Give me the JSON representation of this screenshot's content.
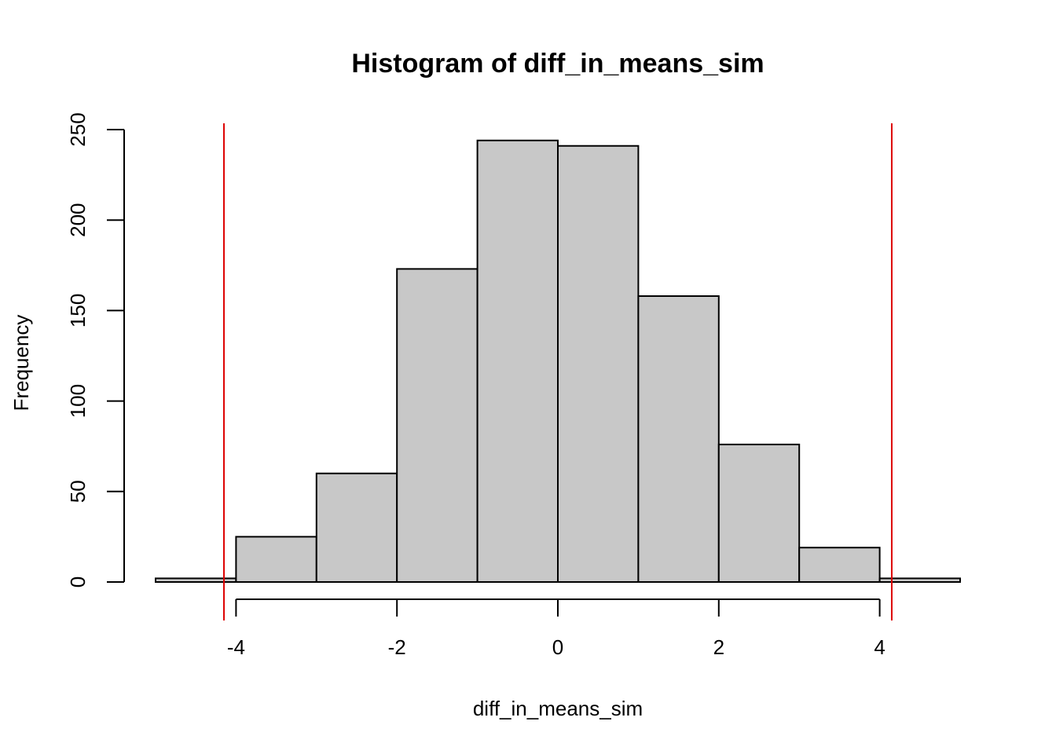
{
  "chart_data": {
    "type": "bar",
    "title": "Histogram of diff_in_means_sim",
    "xlabel": "diff_in_means_sim",
    "ylabel": "Frequency",
    "bins": [
      {
        "x0": -5,
        "x1": -4,
        "count": 2
      },
      {
        "x0": -4,
        "x1": -3,
        "count": 25
      },
      {
        "x0": -3,
        "x1": -2,
        "count": 60
      },
      {
        "x0": -2,
        "x1": -1,
        "count": 173
      },
      {
        "x0": -1,
        "x1": 0,
        "count": 244
      },
      {
        "x0": 0,
        "x1": 1,
        "count": 241
      },
      {
        "x0": 1,
        "x1": 2,
        "count": 158
      },
      {
        "x0": 2,
        "x1": 3,
        "count": 76
      },
      {
        "x0": 3,
        "x1": 4,
        "count": 19
      },
      {
        "x0": 4,
        "x1": 5,
        "count": 2
      }
    ],
    "xticks": [
      -4,
      -2,
      0,
      2,
      4
    ],
    "yticks": [
      0,
      50,
      100,
      150,
      200,
      250
    ],
    "xlim": [
      -5,
      5
    ],
    "ylim": [
      0,
      250
    ],
    "vlines": [
      {
        "x": -4.15,
        "color": "#dd0000"
      },
      {
        "x": 4.15,
        "color": "#dd0000"
      }
    ],
    "bar_fill": "#c8c8c8",
    "bar_stroke": "#000000",
    "grid": false
  }
}
